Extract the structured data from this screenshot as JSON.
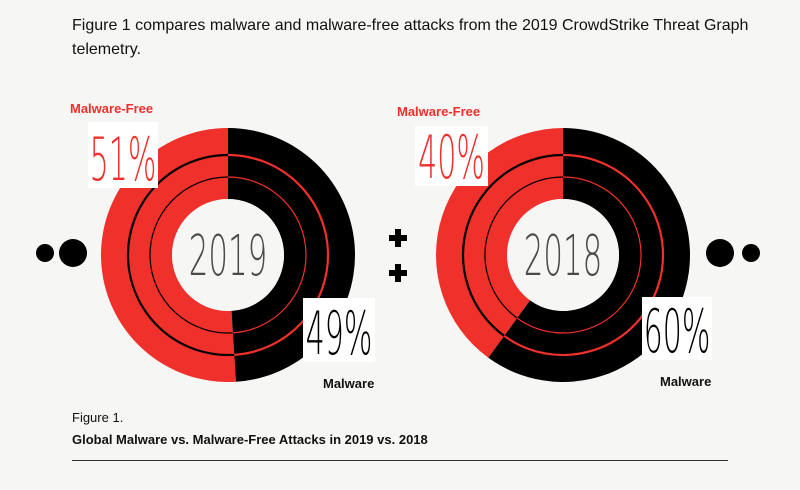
{
  "intro": "Figure 1 compares malware and malware-free attacks from the 2019 CrowdStrike Threat Graph telemetry.",
  "caption": {
    "label": "Figure 1.",
    "title": "Global Malware vs. Malware-Free Attacks in 2019 vs. 2018"
  },
  "colors": {
    "malware_free": "#f0302a",
    "malware": "#000000"
  },
  "chart_data": [
    {
      "type": "pie",
      "title": "2019",
      "categories": [
        "Malware-Free",
        "Malware"
      ],
      "values": [
        51,
        49
      ],
      "labels": [
        "51%",
        "49%"
      ]
    },
    {
      "type": "pie",
      "title": "2018",
      "categories": [
        "Malware-Free",
        "Malware"
      ],
      "values": [
        40,
        60
      ],
      "labels": [
        "40%",
        "60%"
      ]
    }
  ]
}
